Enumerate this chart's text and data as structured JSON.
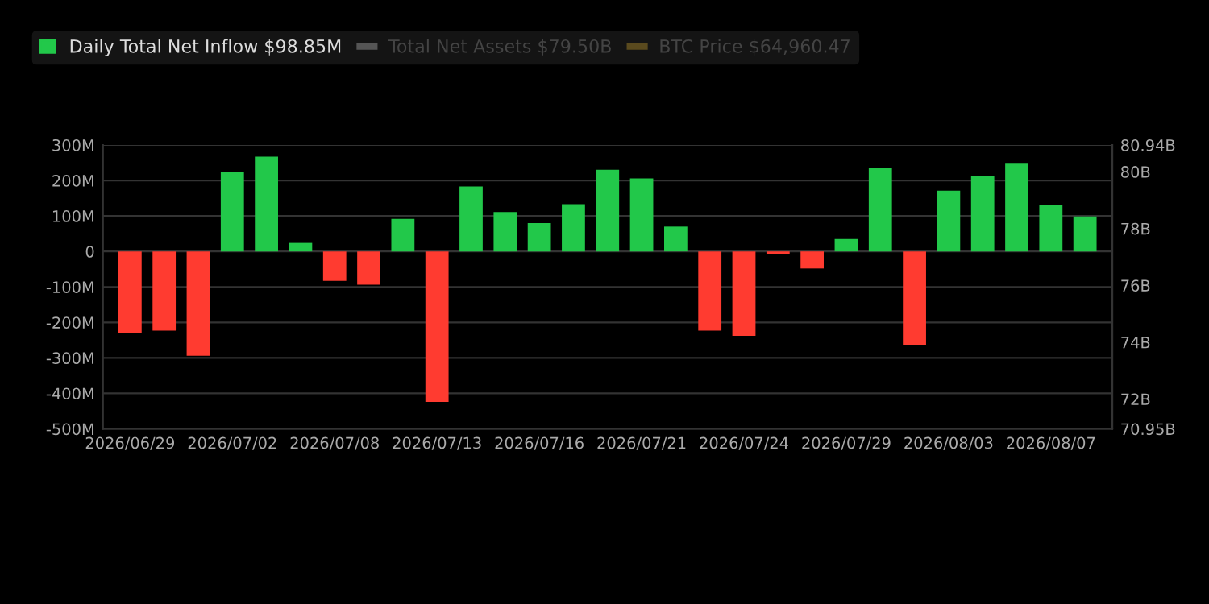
{
  "chart_data": {
    "type": "bar",
    "categories": [
      "2026/06/29",
      null,
      null,
      "2026/07/02",
      null,
      null,
      "2026/07/08",
      null,
      null,
      "2026/07/13",
      null,
      null,
      "2026/07/16",
      null,
      null,
      "2026/07/21",
      null,
      null,
      "2026/07/24",
      null,
      null,
      "2026/07/29",
      null,
      null,
      "2026/08/03",
      null,
      null,
      "2026/08/07",
      null
    ],
    "series": [
      {
        "name": "Daily Total Net Inflow $98.85M",
        "color": "#22c84a",
        "colors": [
          "#ff3b30",
          "#ff3b30",
          "#ff3b30",
          "#22c84a",
          "#22c84a",
          "#22c84a",
          "#ff3b30",
          "#ff3b30",
          "#22c84a",
          "#ff3b30",
          "#22c84a",
          "#22c84a",
          "#22c84a",
          "#22c84a",
          "#22c84a",
          "#22c84a",
          "#22c84a",
          "#ff3b30",
          "#ff3b30",
          "#ff3b30",
          "#ff3b30",
          "#22c84a",
          "#22c84a",
          "#ff3b30",
          "#22c84a",
          "#22c84a",
          "#22c84a",
          "#22c84a",
          "#22c84a"
        ],
        "values": [
          -230,
          -223,
          -294,
          224,
          267,
          24,
          -83,
          -94,
          92,
          -424,
          183,
          111,
          80,
          133,
          230,
          206,
          70,
          -223,
          -238,
          -8,
          -48,
          35,
          236,
          -265,
          171,
          212,
          247,
          130,
          98.85
        ]
      },
      {
        "name": "Total Net Assets $79.50B",
        "type": "line",
        "color": "#555555",
        "values": [
          null,
          null,
          null,
          null,
          null,
          null,
          null,
          null,
          null,
          null,
          null,
          null,
          null,
          null,
          null,
          null,
          null,
          null,
          null,
          null,
          null,
          null,
          null,
          null,
          null,
          null,
          null,
          null,
          null
        ]
      },
      {
        "name": "BTC Price $64,960.47",
        "type": "line",
        "color": "#5a4a1e",
        "values": [
          null,
          null,
          null,
          null,
          null,
          null,
          null,
          null,
          null,
          null,
          null,
          null,
          null,
          null,
          null,
          null,
          null,
          null,
          null,
          null,
          null,
          null,
          null,
          null,
          null,
          null,
          null,
          null,
          null
        ]
      }
    ],
    "ylim": [
      -500,
      300
    ],
    "yticks": [
      {
        "value": -500,
        "label": "-500M"
      },
      {
        "value": -400,
        "label": "-400M"
      },
      {
        "value": -300,
        "label": "-300M"
      },
      {
        "value": -200,
        "label": "-200M"
      },
      {
        "value": -100,
        "label": "-100M"
      },
      0,
      {
        "value": 100,
        "label": "100M"
      },
      {
        "value": 200,
        "label": "200M"
      },
      {
        "value": 300,
        "label": "300M"
      }
    ],
    "y2lim": [
      70.95,
      80.94
    ],
    "y2ticks": [
      {
        "value": 70.95,
        "label": "70.95B"
      },
      {
        "value": 72,
        "label": "72B"
      },
      {
        "value": 74,
        "label": "74B"
      },
      {
        "value": 76,
        "label": "76B"
      },
      {
        "value": 78,
        "label": "78B"
      },
      {
        "value": 80,
        "label": "80B"
      },
      {
        "value": 80.94,
        "label": "80.94B"
      }
    ],
    "grid": "y",
    "legend": "top left"
  }
}
